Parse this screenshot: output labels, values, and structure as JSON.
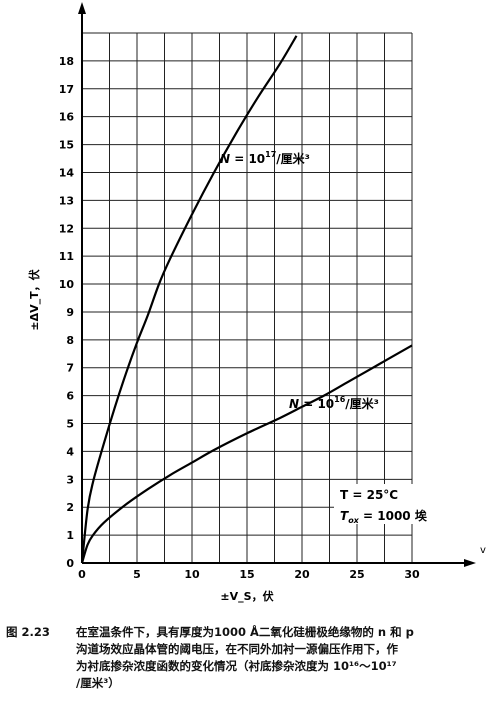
{
  "chart_data": {
    "type": "line",
    "xlabel": "±V_S，伏",
    "ylabel": "±ΔV_T，伏",
    "xlim": [
      0,
      30
    ],
    "ylim": [
      0,
      19
    ],
    "xticks": [
      0,
      5,
      10,
      15,
      20,
      25,
      30
    ],
    "xtick_labels": [
      "0",
      "5",
      "10",
      "15",
      "20",
      "25",
      "30"
    ],
    "yticks": [
      1,
      2,
      3,
      4,
      5,
      6,
      7,
      8,
      9,
      10,
      11,
      12,
      13,
      14,
      15,
      16,
      17,
      18
    ],
    "ytick_labels": [
      "1",
      "2",
      "3",
      "4",
      "5",
      "6",
      "7",
      "8",
      "9",
      "10",
      "11",
      "12",
      "13",
      "14",
      "15",
      "16",
      "17",
      "18"
    ],
    "grid": true,
    "series": [
      {
        "name": "N = 10¹⁷/厘米³",
        "x": [
          0,
          0.5,
          1,
          2,
          3,
          4,
          5,
          6,
          7,
          8,
          10,
          12,
          14,
          16,
          18,
          19.5
        ],
        "y": [
          0,
          1.9,
          2.9,
          4.3,
          5.6,
          6.8,
          7.9,
          8.9,
          10.0,
          10.9,
          12.5,
          14.0,
          15.4,
          16.7,
          17.9,
          18.9
        ]
      },
      {
        "name": "N = 10¹⁶/厘米³",
        "x": [
          0,
          0.5,
          1,
          2,
          4,
          6,
          8,
          10,
          12,
          15,
          18,
          20,
          22,
          24,
          26,
          28,
          30
        ],
        "y": [
          0,
          0.65,
          1.0,
          1.45,
          2.1,
          2.65,
          3.15,
          3.6,
          4.05,
          4.65,
          5.2,
          5.6,
          6.0,
          6.45,
          6.9,
          7.35,
          7.8
        ]
      }
    ],
    "annotations": {
      "label_n17": {
        "prefix": "N",
        "eq": " = 10",
        "sup": "17",
        "suffix": "/厘米³"
      },
      "label_n16": {
        "prefix": "N",
        "eq": " = 10",
        "sup": "16",
        "suffix": "/厘米³"
      },
      "temp": "T = 25°C",
      "tox_main": "T",
      "tox_sub": "ox",
      "tox_value": " = 1000 埃"
    },
    "x_axis_arrow_mark": "v"
  },
  "caption": {
    "figure_number": "图 2.23",
    "lines": [
      "在室温条件下，具有厚度为1000 Å二氧化硅栅极绝缘物的 n 和 p",
      "沟道场效应晶体管的阈电压，在不同外加衬一源偏压作用下，作",
      "为衬底掺杂浓度函数的变化情况（衬底掺杂浓度为 10¹⁶～10¹⁷",
      "/厘米³）"
    ]
  }
}
